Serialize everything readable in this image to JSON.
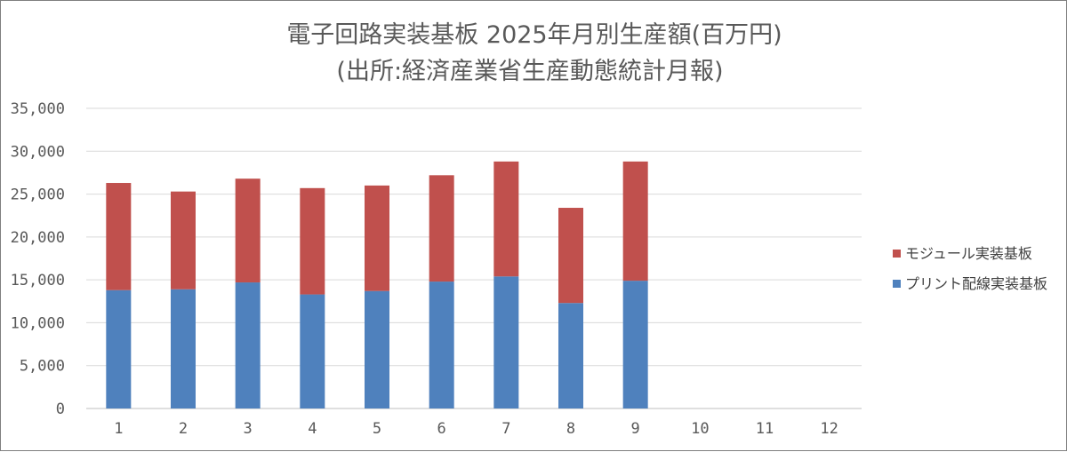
{
  "chart_data": {
    "type": "bar",
    "stacked": true,
    "title": "電子回路実装基板 2025年月別生産額(百万円)",
    "subtitle": "(出所:経済産業省生産動態統計月報)",
    "xlabel": "",
    "ylabel": "",
    "categories": [
      "1",
      "2",
      "3",
      "4",
      "5",
      "6",
      "7",
      "8",
      "9",
      "10",
      "11",
      "12"
    ],
    "series": [
      {
        "name": "プリント配線実装基板",
        "color": "#4f81bd",
        "values": [
          13800,
          13900,
          14700,
          13300,
          13700,
          14800,
          15400,
          12300,
          14900,
          null,
          null,
          null
        ]
      },
      {
        "name": "モジュール実装基板",
        "color": "#c0504d",
        "values": [
          12500,
          11400,
          12100,
          12400,
          12300,
          12400,
          13400,
          11100,
          13900,
          null,
          null,
          null
        ]
      }
    ],
    "ylim": [
      0,
      35000
    ],
    "yticks": [
      0,
      5000,
      10000,
      15000,
      20000,
      25000,
      30000,
      35000
    ],
    "ytick_labels": [
      "0",
      "5,000",
      "10,000",
      "15,000",
      "20,000",
      "25,000",
      "30,000",
      "35,000"
    ],
    "grid": true,
    "legend_position": "right",
    "legend_order": [
      "モジュール実装基板",
      "プリント配線実装基板"
    ]
  }
}
